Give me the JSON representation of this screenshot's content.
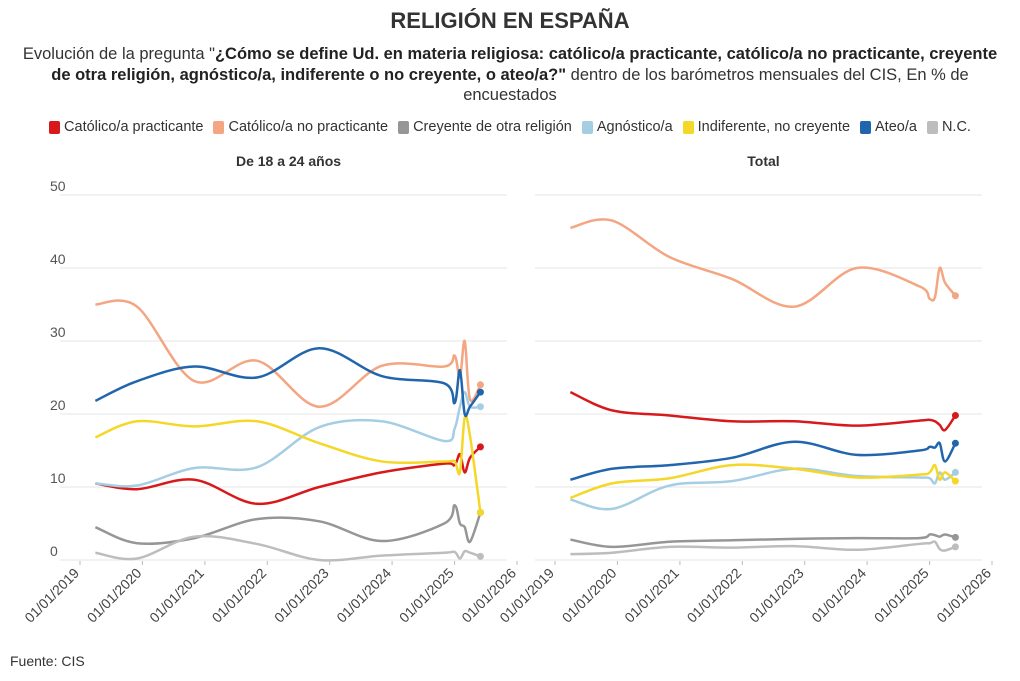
{
  "header": {
    "title": "RELIGIÓN EN ESPAÑA",
    "subtitle": [
      {
        "text": "Evolución de la pregunta \"",
        "bold": false
      },
      {
        "text": "¿Cómo se define Ud. en materia religiosa: católico/a practicante, católico/a no practicante, creyente de otra religión, agnóstico/a, indiferente o no creyente, o ateo/a?\"",
        "bold": true
      },
      {
        "text": " dentro de los barómetros mensuales del CIS, En % de encuestados",
        "bold": false
      }
    ]
  },
  "source": "Fuente: CIS",
  "chart_data": [
    {
      "type": "line",
      "title": "De 18 a 24 años",
      "x": [
        "2019-04-01",
        "2019-12-01",
        "2020-11-01",
        "2021-11-01",
        "2022-11-01",
        "2023-11-01",
        "2024-11-01",
        "2025-01-01",
        "2025-02-01",
        "2025-03-01",
        "2025-04-01",
        "2025-06-01"
      ],
      "series": [
        {
          "name": "Católico/a practicante",
          "color": "#d7191c",
          "values": [
            10.5,
            9.7,
            11,
            7.7,
            10,
            12,
            13.2,
            13,
            14.5,
            12,
            14,
            15.5
          ]
        },
        {
          "name": "Católico/a no practicante",
          "color": "#f4a582",
          "values": [
            35,
            34.7,
            24.5,
            27.3,
            21,
            26.6,
            26.5,
            28,
            25,
            30,
            22,
            24
          ]
        },
        {
          "name": "Creyente de otra religión",
          "color": "#969696",
          "values": [
            4.5,
            2.3,
            3,
            5.6,
            5.3,
            2.6,
            5,
            7.5,
            5,
            4.5,
            2.5,
            6.5
          ]
        },
        {
          "name": "Agnóstico/a",
          "color": "#a6cee3",
          "values": [
            10.5,
            10.2,
            12.6,
            12.7,
            18.2,
            19,
            16.3,
            18,
            21,
            23,
            21,
            21
          ]
        },
        {
          "name": "Indiferente, no creyente",
          "color": "#f5d727",
          "values": [
            16.8,
            19,
            18.3,
            19,
            16,
            13.5,
            13.5,
            13.5,
            12,
            19.5,
            17,
            6.5
          ]
        },
        {
          "name": "Ateo/a",
          "color": "#2166ac",
          "values": [
            21.8,
            24.5,
            26.5,
            25,
            29,
            25.2,
            24.2,
            21.5,
            26,
            20,
            21,
            23
          ]
        },
        {
          "name": "N.C.",
          "color": "#bdbdbd",
          "values": [
            1,
            0.2,
            3.2,
            2.2,
            0,
            0.6,
            1,
            1.1,
            0.2,
            1.2,
            1,
            0.5
          ]
        }
      ],
      "xlim": [
        "2019-01-01",
        "2026-01-01"
      ],
      "xticks": [
        {
          "value": "2019-01-01",
          "label": "01/01/2019"
        },
        {
          "value": "2020-01-01",
          "label": "01/01/2020"
        },
        {
          "value": "2021-01-01",
          "label": "01/01/2021"
        },
        {
          "value": "2022-01-01",
          "label": "01/01/2022"
        },
        {
          "value": "2023-01-01",
          "label": "01/01/2023"
        },
        {
          "value": "2024-01-01",
          "label": "01/01/2024"
        },
        {
          "value": "2025-01-01",
          "label": "01/01/2025"
        },
        {
          "value": "2026-01-01",
          "label": "01/01/2026"
        }
      ],
      "ylim": [
        0,
        50
      ],
      "yticks": [
        0,
        10,
        20,
        30,
        40,
        50
      ],
      "ytick_labels": true,
      "grid": true
    },
    {
      "type": "line",
      "title": "Total",
      "x": [
        "2019-04-01",
        "2019-12-01",
        "2020-11-01",
        "2021-11-01",
        "2022-11-01",
        "2023-11-01",
        "2024-11-01",
        "2025-01-01",
        "2025-02-01",
        "2025-03-01",
        "2025-04-01",
        "2025-06-01"
      ],
      "series": [
        {
          "name": "Católico/a practicante",
          "color": "#d7191c",
          "values": [
            23,
            20.5,
            19.8,
            19,
            19,
            18.4,
            19.1,
            19.2,
            19,
            18.5,
            17.8,
            19.8
          ]
        },
        {
          "name": "Católico/a no practicante",
          "color": "#f4a582",
          "values": [
            45.5,
            46.5,
            41.5,
            38.5,
            34.7,
            40,
            37.5,
            35.8,
            36,
            40,
            38,
            36.2
          ]
        },
        {
          "name": "Creyente de otra religión",
          "color": "#969696",
          "values": [
            2.8,
            1.8,
            2.5,
            2.7,
            2.9,
            3,
            3,
            3.5,
            3.4,
            3.2,
            3.5,
            3.1
          ]
        },
        {
          "name": "Agnóstico/a",
          "color": "#a6cee3",
          "values": [
            8.3,
            7,
            10.2,
            10.8,
            12.5,
            11.5,
            11.3,
            11.2,
            10.5,
            12,
            11,
            12
          ]
        },
        {
          "name": "Indiferente, no creyente",
          "color": "#f5d727",
          "values": [
            8.5,
            10.5,
            11.2,
            13,
            12.5,
            11.3,
            11.7,
            12,
            13,
            11,
            12,
            10.8
          ]
        },
        {
          "name": "Ateo/a",
          "color": "#2166ac",
          "values": [
            11,
            12.5,
            13,
            14,
            16.2,
            14.4,
            15,
            15.5,
            15.4,
            16,
            13.5,
            16
          ]
        },
        {
          "name": "N.C.",
          "color": "#bdbdbd",
          "values": [
            0.8,
            1,
            1.8,
            1.7,
            1.9,
            1.4,
            2.2,
            2.3,
            2.5,
            1.5,
            1.3,
            1.8
          ]
        }
      ],
      "xlim": [
        "2019-01-01",
        "2026-01-01"
      ],
      "xticks": [
        {
          "value": "2019-01-01",
          "label": "01/01/2019"
        },
        {
          "value": "2020-01-01",
          "label": "01/01/2020"
        },
        {
          "value": "2021-01-01",
          "label": "01/01/2021"
        },
        {
          "value": "2022-01-01",
          "label": "01/01/2022"
        },
        {
          "value": "2023-01-01",
          "label": "01/01/2023"
        },
        {
          "value": "2024-01-01",
          "label": "01/01/2024"
        },
        {
          "value": "2025-01-01",
          "label": "01/01/2025"
        },
        {
          "value": "2026-01-01",
          "label": "01/01/2026"
        }
      ],
      "ylim": [
        0,
        50
      ],
      "yticks": [
        0,
        10,
        20,
        30,
        40,
        50
      ],
      "ytick_labels": false,
      "grid": true
    }
  ]
}
